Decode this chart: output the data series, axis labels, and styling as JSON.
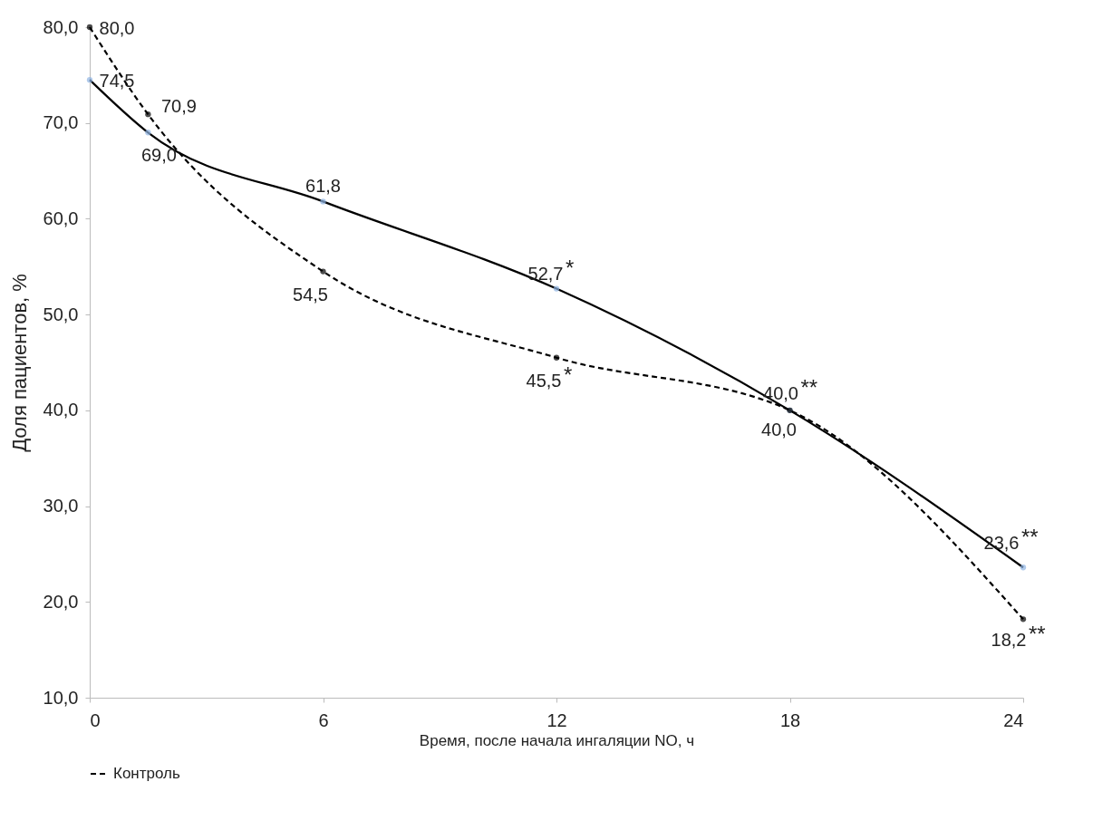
{
  "chart_data": {
    "type": "line",
    "xlabel": "Время, после начала ингаляции NO, ч",
    "ylabel": "Доля пациентов, %",
    "x": [
      0,
      1.5,
      6,
      12,
      18,
      24
    ],
    "series": [
      {
        "color": "#000000",
        "line_style": "solid",
        "values": [
          74.5,
          69.0,
          61.8,
          52.7,
          40.0,
          23.6
        ],
        "value_labels": [
          "74,5",
          "69,0",
          "61,8",
          "52,7",
          "40,0",
          "23,6"
        ]
      },
      {
        "name": "Контроль",
        "color": "#000000",
        "line_style": "dashed",
        "values": [
          80.0,
          70.9,
          54.5,
          45.5,
          40.0,
          18.2
        ],
        "value_labels": [
          "80,0",
          "70,9",
          "54,5",
          "45,5",
          "40,0",
          "18,2"
        ]
      }
    ],
    "xlim": [
      0,
      24
    ],
    "xticks": [
      0,
      6,
      12,
      18,
      24
    ],
    "ylim": [
      10,
      80
    ],
    "yticks": [
      {
        "value": 10,
        "label": "10,0"
      },
      {
        "value": 20,
        "label": "20,0"
      },
      {
        "value": 30,
        "label": "30,0"
      },
      {
        "value": 40,
        "label": "40,0"
      },
      {
        "value": 50,
        "label": "50,0"
      },
      {
        "value": 60,
        "label": "60,0"
      },
      {
        "value": 70,
        "label": "70,0"
      },
      {
        "value": 80,
        "label": "80,0"
      }
    ],
    "marker": "circle",
    "grid": false,
    "legend": "bottom",
    "annotations": [
      {
        "text": "*",
        "x": 12,
        "y": 52.7
      },
      {
        "text": "*",
        "x": 12,
        "y": 45.5
      },
      {
        "text": "**",
        "x": 18,
        "y": 40.0
      },
      {
        "text": "**",
        "x": 24,
        "y": 23.6
      },
      {
        "text": "**",
        "x": 24,
        "y": 18.2
      }
    ]
  }
}
